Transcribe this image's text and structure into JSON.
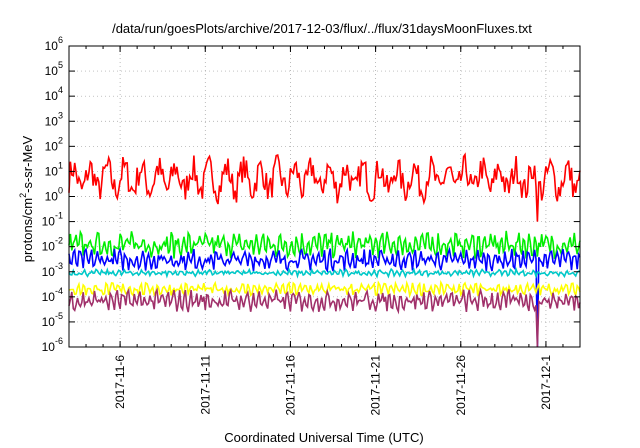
{
  "chart_data": {
    "type": "line",
    "title": "/data/run/goesPlots/archive/2017-12-03/flux/../flux/31daysMoonFluxes.txt",
    "xlabel": "Coordinated Universal Time (UTC)",
    "ylabel_parts": [
      "protons/cm",
      "2",
      "-s-sr-MeV"
    ],
    "yscale": "log",
    "ylim_exp": [
      -6,
      6
    ],
    "y_tick_labels": [
      {
        "base": "10",
        "exp": "-6"
      },
      {
        "base": "10",
        "exp": "-5"
      },
      {
        "base": "10",
        "exp": "-4"
      },
      {
        "base": "10",
        "exp": "-3"
      },
      {
        "base": "10",
        "exp": "-2"
      },
      {
        "base": "10",
        "exp": "-1"
      },
      {
        "base": "10",
        "exp": "0"
      },
      {
        "base": "10",
        "exp": "1"
      },
      {
        "base": "10",
        "exp": "2"
      },
      {
        "base": "10",
        "exp": "3"
      },
      {
        "base": "10",
        "exp": "4"
      },
      {
        "base": "10",
        "exp": "5"
      },
      {
        "base": "10",
        "exp": "6"
      }
    ],
    "xlim": [
      "2017-11-03T00:00",
      "2017-12-03T00:00"
    ],
    "x_ticks": [
      {
        "label": "2017-11-6",
        "date": "2017-11-06"
      },
      {
        "label": "2017-11-11",
        "date": "2017-11-11"
      },
      {
        "label": "2017-11-16",
        "date": "2017-11-16"
      },
      {
        "label": "2017-11-21",
        "date": "2017-11-21"
      },
      {
        "label": "2017-11-26",
        "date": "2017-11-26"
      },
      {
        "label": "2017-12-1",
        "date": "2017-12-01"
      }
    ],
    "grid": true,
    "series": [
      {
        "color": "#ff0000",
        "level": 5,
        "swing": 10,
        "dip_min": 0.1,
        "dip_date": "2017-11-30"
      },
      {
        "color": "#00ee00",
        "level": 0.012,
        "swing": 4
      },
      {
        "color": "#0000ff",
        "level": 0.003,
        "swing": 3,
        "dip_min": 1e-06,
        "dip_date": "2017-11-30"
      },
      {
        "color": "#00c8c8",
        "level": 0.0009,
        "swing": 1.4
      },
      {
        "color": "#ffff00",
        "level": 0.0002,
        "swing": 2
      },
      {
        "color": "#a0306a",
        "level": 7e-05,
        "swing": 3,
        "dip_min": 1e-06,
        "dip_date": "2017-11-30"
      }
    ]
  }
}
